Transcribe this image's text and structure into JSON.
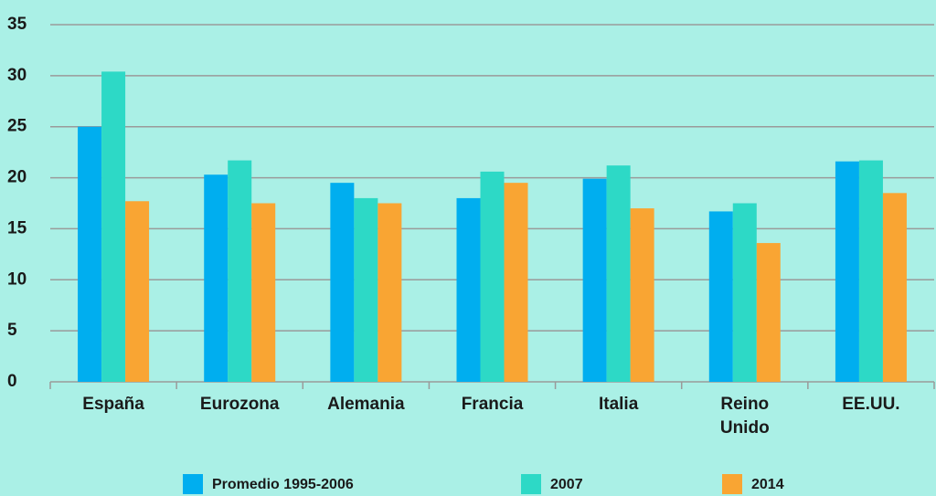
{
  "chart_data": {
    "type": "bar",
    "categories": [
      "España",
      "Eurozona",
      "Alemania",
      "Francia",
      "Italia",
      "Reino Unido",
      "EE.UU."
    ],
    "series": [
      {
        "name": "Promedio 1995-2006",
        "color": "#00aeef",
        "values": [
          25.0,
          20.3,
          19.5,
          18.0,
          19.9,
          16.7,
          21.6
        ]
      },
      {
        "name": "2007",
        "color": "#2dd9c6",
        "values": [
          30.4,
          21.7,
          18.0,
          20.6,
          21.2,
          17.5,
          21.7
        ]
      },
      {
        "name": "2014",
        "color": "#f9a533",
        "values": [
          17.7,
          17.5,
          17.5,
          19.5,
          17.0,
          13.6,
          18.5
        ]
      }
    ],
    "ylim": [
      0,
      35
    ],
    "yticks": [
      0,
      5,
      10,
      15,
      20,
      25,
      30,
      35
    ],
    "grid": true
  }
}
